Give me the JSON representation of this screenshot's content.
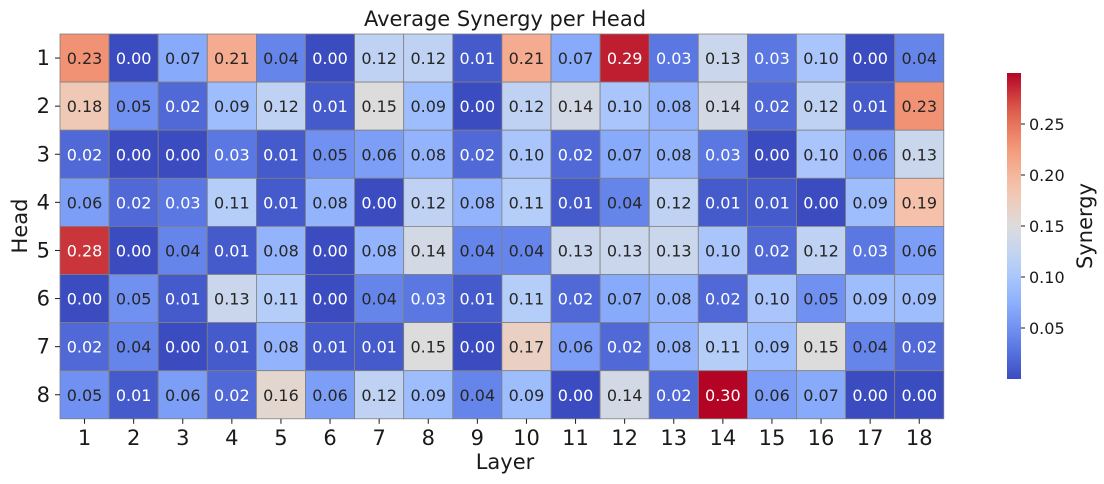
{
  "chart_data": {
    "type": "heatmap",
    "title": "Average Synergy per Head",
    "xlabel": "Layer",
    "ylabel": "Head",
    "x_categories": [
      "1",
      "2",
      "3",
      "4",
      "5",
      "6",
      "7",
      "8",
      "9",
      "10",
      "11",
      "12",
      "13",
      "14",
      "15",
      "16",
      "17",
      "18"
    ],
    "y_categories": [
      "1",
      "2",
      "3",
      "4",
      "5",
      "6",
      "7",
      "8"
    ],
    "values": [
      [
        0.23,
        0.0,
        0.07,
        0.21,
        0.04,
        0.0,
        0.12,
        0.12,
        0.01,
        0.21,
        0.07,
        0.29,
        0.03,
        0.13,
        0.03,
        0.1,
        0.0,
        0.04
      ],
      [
        0.18,
        0.05,
        0.02,
        0.09,
        0.12,
        0.01,
        0.15,
        0.09,
        0.0,
        0.12,
        0.14,
        0.1,
        0.08,
        0.14,
        0.02,
        0.12,
        0.01,
        0.23
      ],
      [
        0.02,
        0.0,
        0.0,
        0.03,
        0.01,
        0.05,
        0.06,
        0.08,
        0.02,
        0.1,
        0.02,
        0.07,
        0.08,
        0.03,
        0.0,
        0.1,
        0.06,
        0.13
      ],
      [
        0.06,
        0.02,
        0.03,
        0.11,
        0.01,
        0.08,
        0.0,
        0.12,
        0.08,
        0.11,
        0.01,
        0.04,
        0.12,
        0.01,
        0.01,
        0.0,
        0.09,
        0.19
      ],
      [
        0.28,
        0.0,
        0.04,
        0.01,
        0.08,
        0.0,
        0.08,
        0.14,
        0.04,
        0.04,
        0.13,
        0.13,
        0.13,
        0.1,
        0.02,
        0.12,
        0.03,
        0.06
      ],
      [
        0.0,
        0.05,
        0.01,
        0.13,
        0.11,
        0.0,
        0.04,
        0.03,
        0.01,
        0.11,
        0.02,
        0.07,
        0.08,
        0.02,
        0.1,
        0.05,
        0.09,
        0.09
      ],
      [
        0.02,
        0.04,
        0.0,
        0.01,
        0.08,
        0.01,
        0.01,
        0.15,
        0.0,
        0.17,
        0.06,
        0.02,
        0.08,
        0.11,
        0.09,
        0.15,
        0.04,
        0.02
      ],
      [
        0.05,
        0.01,
        0.06,
        0.02,
        0.16,
        0.06,
        0.12,
        0.09,
        0.04,
        0.09,
        0.0,
        0.14,
        0.02,
        0.3,
        0.06,
        0.07,
        0.0,
        0.0
      ]
    ],
    "vmin": 0.0,
    "vmax": 0.3,
    "colormap": "coolwarm",
    "colorbar": {
      "label": "Synergy",
      "ticks": [
        0.05,
        0.1,
        0.15,
        0.2,
        0.25
      ],
      "tick_labels": [
        "0.05",
        "0.10",
        "0.15",
        "0.20",
        "0.25"
      ]
    },
    "cell_border_color": "#808080"
  }
}
